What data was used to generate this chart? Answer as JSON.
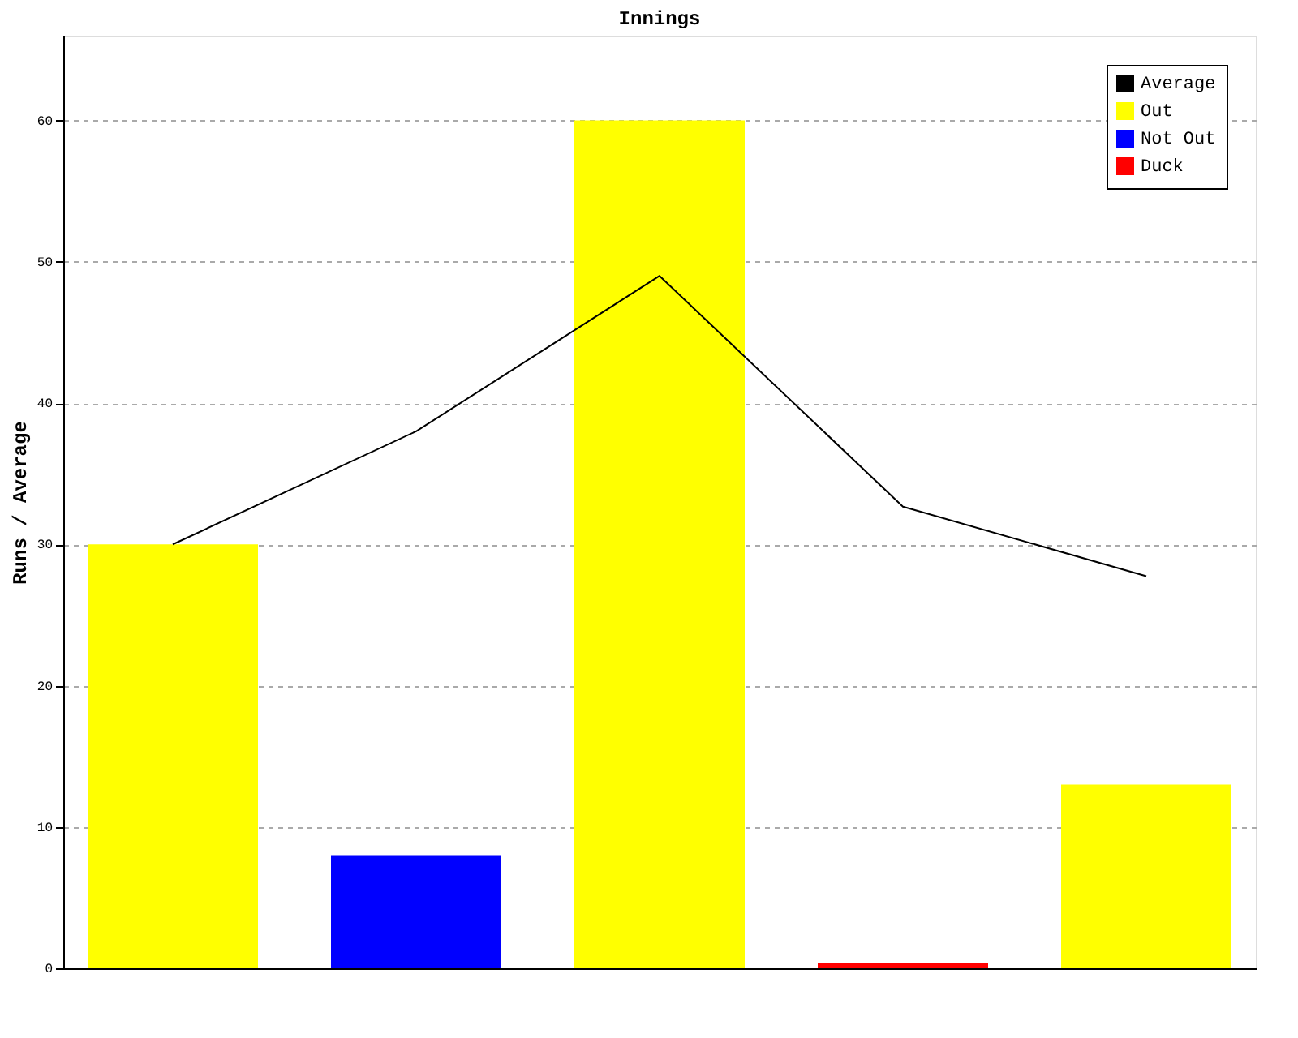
{
  "chart_data": {
    "type": "bar",
    "title": "Innings",
    "ylabel": "Runs / Average",
    "categories": [
      null,
      null,
      null,
      null,
      null
    ],
    "ylim": [
      0,
      66
    ],
    "yticks": [
      0,
      10,
      20,
      30,
      40,
      50,
      60
    ],
    "grid": "y",
    "legend": "top right",
    "tick_labels": "y",
    "series": [
      {
        "name": "Average",
        "type": "line",
        "color": "#000000",
        "values": [
          30,
          38,
          49,
          32.67,
          27.75
        ]
      },
      {
        "name": "Out",
        "color": "#ffff00",
        "values": [
          30,
          null,
          60,
          null,
          13
        ]
      },
      {
        "name": "Not Out",
        "color": "#0000ff",
        "values": [
          null,
          8,
          null,
          null,
          null
        ]
      },
      {
        "name": "Duck",
        "color": "#ff0000",
        "values": [
          null,
          null,
          null,
          0.4,
          null
        ]
      }
    ]
  }
}
